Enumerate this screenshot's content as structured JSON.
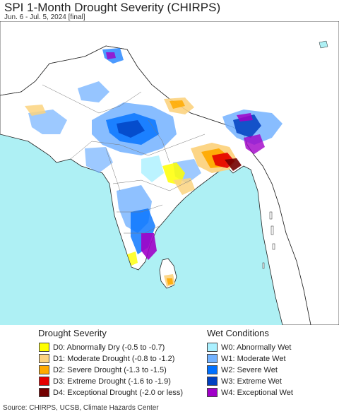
{
  "header": {
    "title": "SPI 1-Month Drought Severity (CHIRPS)",
    "subtitle": "Jun. 6 - Jul. 5, 2024 [final]"
  },
  "map": {
    "colors": {
      "ocean": "#aef0f4",
      "land": "#ffffff",
      "outside_land": "#ffffff",
      "border": "#222222",
      "state_border": "#777777"
    }
  },
  "legend": {
    "drought_title": "Drought Severity",
    "wet_title": "Wet Conditions",
    "drought_items": [
      {
        "label": "D0: Abnormally Dry (-0.5 to -0.7)",
        "color": "#ffff00"
      },
      {
        "label": "D1: Moderate Drought (-0.8 to -1.2)",
        "color": "#fcd37f"
      },
      {
        "label": "D2: Severe Drought (-1.3 to -1.5)",
        "color": "#ffaa00"
      },
      {
        "label": "D3: Extreme Drought (-1.6 to -1.9)",
        "color": "#e60000"
      },
      {
        "label": "D4: Exceptional Drought (-2.0 or less)",
        "color": "#730000"
      }
    ],
    "wet_items": [
      {
        "label": "W0: Abnormally Wet",
        "color": "#aaf0ff"
      },
      {
        "label": "W1: Moderate Wet",
        "color": "#73b2ff"
      },
      {
        "label": "W2: Severe Wet",
        "color": "#0070ff"
      },
      {
        "label": "W3: Extreme Wet",
        "color": "#0040c0"
      },
      {
        "label": "W4: Exceptional Wet",
        "color": "#a000c8"
      }
    ]
  },
  "footer": {
    "source": "Source: CHIRPS, UCSB, Climate Hazards Center"
  }
}
